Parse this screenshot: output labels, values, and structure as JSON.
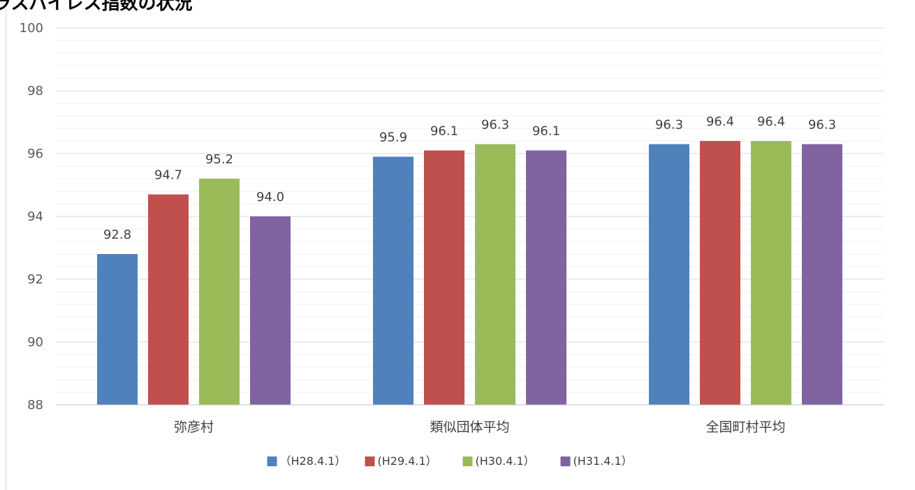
{
  "chart_data": {
    "type": "bar",
    "title": "ラスパイレス指数の状況",
    "categories": [
      "弥彦村",
      "類似団体平均",
      "全国町村平均"
    ],
    "series": [
      {
        "name": "（H28.4.1）",
        "color": "#4f81bd",
        "values": [
          92.8,
          95.9,
          96.3
        ],
        "labels": [
          "92.8",
          "95.9",
          "96.3"
        ]
      },
      {
        "name": "(H29.4.1）",
        "color": "#c0504d",
        "values": [
          94.7,
          96.1,
          96.4
        ],
        "labels": [
          "94.7",
          "96.1",
          "96.4"
        ]
      },
      {
        "name": "(H30.4.1）",
        "color": "#9bbb59",
        "values": [
          95.2,
          96.3,
          96.4
        ],
        "labels": [
          "95.2",
          "96.3",
          "96.4"
        ]
      },
      {
        "name": "(H31.4.1）",
        "color": "#8064a2",
        "values": [
          94.0,
          96.1,
          96.3
        ],
        "labels": [
          "94.0",
          "96.1",
          "96.3"
        ]
      }
    ],
    "ylim": [
      88,
      100
    ],
    "yticks": [
      "88",
      "90",
      "92",
      "94",
      "96",
      "98",
      "100"
    ],
    "xlabel": "",
    "ylabel": "",
    "grid": true,
    "legend": "bottom"
  }
}
